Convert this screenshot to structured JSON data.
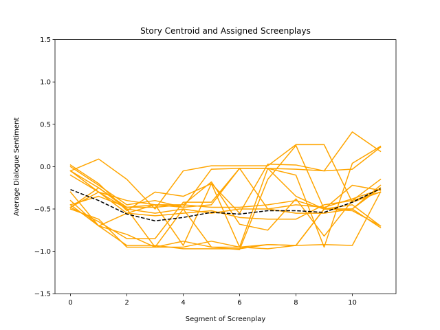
{
  "chart_data": {
    "type": "line",
    "title": "Story Centroid and Assigned Screenplays",
    "xlabel": "Segment of Screenplay",
    "ylabel": "Average Dialogue Sentiment",
    "xlim": [
      -0.55,
      11.55
    ],
    "ylim": [
      -1.5,
      1.5
    ],
    "x_ticks": [
      0,
      2,
      4,
      6,
      8,
      10
    ],
    "y_ticks": [
      -1.5,
      -1.0,
      -0.5,
      0.0,
      0.5,
      1.0,
      1.5
    ],
    "y_tick_labels": [
      "−1.5",
      "−1.0",
      "−0.5",
      "0.0",
      "0.5",
      "1.0",
      "1.5"
    ],
    "x_tick_labels": [
      "0",
      "2",
      "4",
      "6",
      "8",
      "10"
    ],
    "grid": false,
    "legend": "none",
    "colors": {
      "screenplay": "#FFA500",
      "centroid": "#000000"
    },
    "x": [
      0,
      1,
      2,
      3,
      4,
      5,
      6,
      7,
      8,
      9,
      10,
      11
    ],
    "centroid": [
      -0.27,
      -0.4,
      -0.56,
      -0.64,
      -0.6,
      -0.54,
      -0.56,
      -0.52,
      -0.52,
      -0.54,
      -0.42,
      -0.26
    ],
    "series": [
      {
        "values": [
          0.02,
          -0.2,
          -0.52,
          -0.3,
          -0.35,
          -0.2,
          -0.95,
          -0.02,
          -0.1,
          -0.95,
          0.04,
          0.24
        ]
      },
      {
        "values": [
          -0.05,
          0.09,
          -0.15,
          -0.5,
          -0.05,
          0.01,
          0.01,
          0.01,
          0.26,
          0.26,
          -0.42,
          -0.3
        ]
      },
      {
        "values": [
          -0.1,
          -0.3,
          -0.4,
          -0.45,
          -0.48,
          -0.45,
          -0.02,
          -0.02,
          -0.03,
          -0.05,
          -0.03,
          0.23
        ]
      },
      {
        "values": [
          -0.5,
          -0.62,
          -0.95,
          -0.95,
          -0.88,
          -0.95,
          -0.95,
          -0.92,
          -0.93,
          -0.5,
          -0.5,
          -0.72
        ]
      },
      {
        "values": [
          -0.45,
          -0.7,
          -0.8,
          -0.95,
          -0.95,
          -0.88,
          -0.95,
          -0.97,
          -0.93,
          -0.5,
          -0.52,
          -0.7
        ]
      },
      {
        "values": [
          -0.48,
          -0.25,
          -0.48,
          -0.45,
          -0.45,
          -0.18,
          -0.68,
          -0.75,
          -0.38,
          -0.82,
          -0.4,
          -0.15
        ]
      },
      {
        "values": [
          -0.05,
          -0.25,
          -0.5,
          -0.95,
          -0.5,
          -0.95,
          -0.98,
          -0.15,
          0.25,
          -0.5,
          -0.22,
          -0.28
        ]
      },
      {
        "values": [
          -0.3,
          -0.7,
          -0.93,
          -0.93,
          -0.97,
          -0.97,
          -0.97,
          -0.92,
          -0.93,
          -0.92,
          -0.93,
          -0.3
        ]
      },
      {
        "values": [
          -0.4,
          -0.7,
          -0.55,
          -0.45,
          -0.93,
          -0.2,
          -0.55,
          0.03,
          0.02,
          -0.05,
          0.41,
          0.18
        ]
      },
      {
        "values": [
          -0.48,
          -0.65,
          -0.85,
          -0.85,
          -0.42,
          -0.42,
          -0.02,
          -0.5,
          -0.55,
          -0.55,
          -0.5,
          -0.25
        ]
      },
      {
        "values": [
          0.0,
          -0.22,
          -0.45,
          -0.4,
          -0.48,
          -0.03,
          -0.02,
          -0.02,
          -0.35,
          -0.5,
          -0.5,
          -0.22
        ]
      },
      {
        "values": [
          -0.48,
          -0.3,
          -0.55,
          -0.58,
          -0.55,
          -0.52,
          -0.6,
          -0.62,
          -0.62,
          -0.45,
          -0.4,
          -0.3
        ]
      },
      {
        "values": [
          -0.45,
          -0.35,
          -0.48,
          -0.48,
          -0.45,
          -0.48,
          -0.48,
          -0.45,
          -0.4,
          -0.5,
          -0.45,
          -0.7
        ]
      },
      {
        "values": [
          -0.05,
          -0.3,
          -0.5,
          -0.55,
          -0.5,
          -0.55,
          -0.5,
          -0.5,
          -0.45,
          -0.48,
          -0.38,
          -0.27
        ]
      }
    ]
  }
}
